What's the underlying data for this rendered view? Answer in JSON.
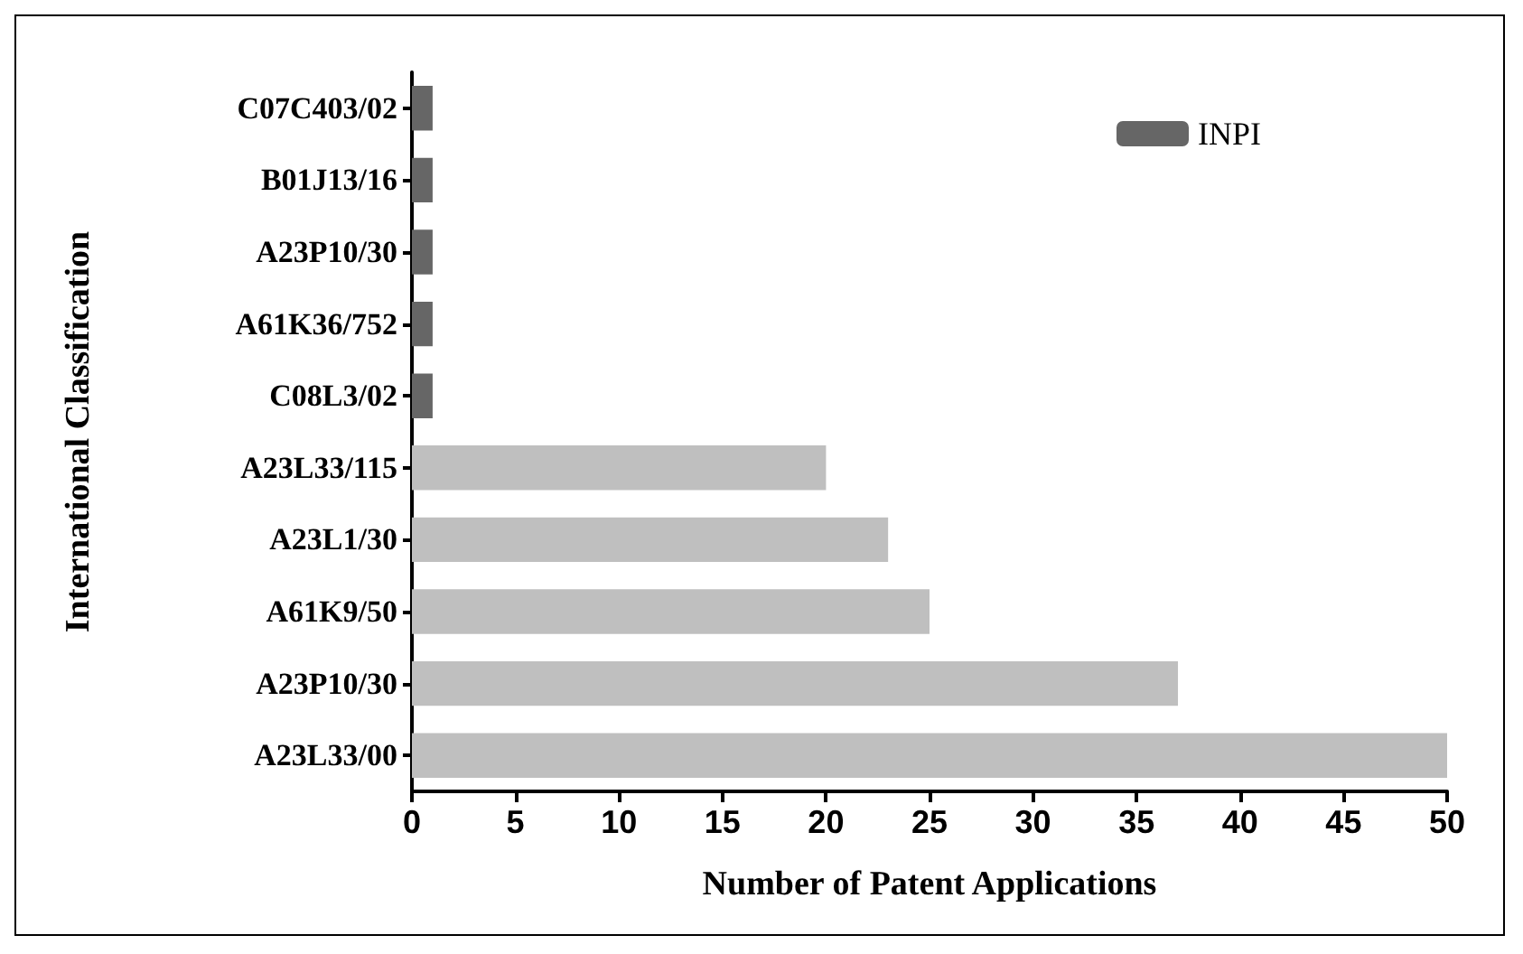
{
  "chart_data": {
    "type": "bar",
    "orientation": "horizontal",
    "stacked": true,
    "xlabel": "Number of Patent Applications",
    "ylabel": "International Classification",
    "categories": [
      "C07C403/02",
      "B01J13/16",
      "A23P10/30",
      "A61K36/752",
      "C08L3/02",
      "A23L33/115",
      "A23L1/30",
      "A61K9/50",
      "A23P10/30",
      "A23L33/00"
    ],
    "series": [
      {
        "color": "#bfbfbf",
        "values": [
          null,
          null,
          null,
          null,
          null,
          20,
          23,
          25,
          37,
          50
        ]
      },
      {
        "name": "INPI",
        "color": "#666666",
        "values": [
          1,
          1,
          1,
          1,
          1,
          null,
          null,
          null,
          null,
          null
        ]
      }
    ],
    "xlim": [
      0,
      50
    ],
    "xticks": [
      0,
      5,
      10,
      15,
      20,
      25,
      30,
      35,
      40,
      45,
      50
    ],
    "grid": false,
    "legend": "top right"
  }
}
